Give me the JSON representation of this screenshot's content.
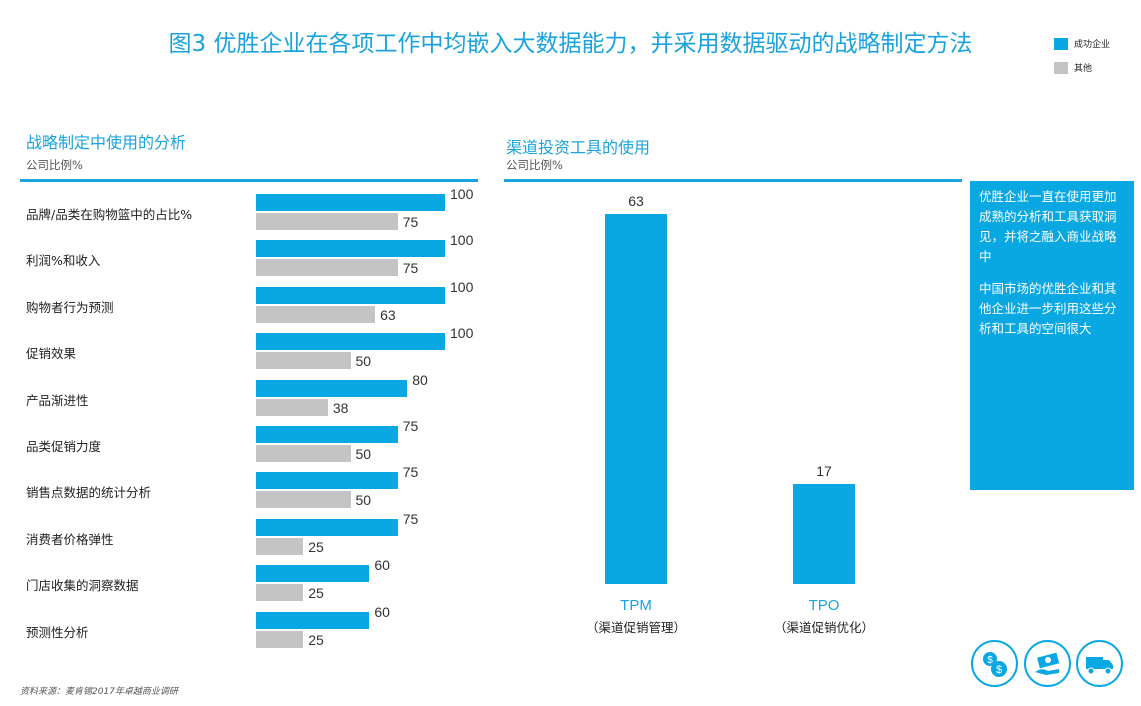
{
  "title": "图3  优胜企业在各项工作中均嵌入大数据能力，并采用数据驱动的战略制定方法",
  "legend": [
    {
      "label": "成功企业",
      "color": "#0aa8e2"
    },
    {
      "label": "其他",
      "color": "#c4c4c4"
    }
  ],
  "left_panel": {
    "title": "战略制定中使用的分析",
    "subtitle": "公司比例%"
  },
  "right_panel": {
    "title": "渠道投资工具的使用",
    "subtitle": "公司比例%"
  },
  "callout": {
    "p1": "优胜企业一直在使用更加成熟的分析和工具获取洞见，并将之融入商业战略中",
    "p2": "中国市场的优胜企业和其他企业进一步利用这些分析和工具的空间很大"
  },
  "source": "资料来源：麦肯锡2017年卓越商业调研",
  "icons": [
    "money-coins-icon",
    "cash-hand-icon",
    "delivery-truck-icon"
  ],
  "chart_data": [
    {
      "type": "bar",
      "orientation": "horizontal",
      "title": "战略制定中使用的分析",
      "ylabel": "公司比例%",
      "categories": [
        "品牌/品类在购物篮中的占比%",
        "利润%和收入",
        "购物者行为预测",
        "促销效果",
        "产品渐进性",
        "品类促销力度",
        "销售点数据的统计分析",
        "消费者价格弹性",
        "门店收集的洞察数据",
        "预测性分析"
      ],
      "series": [
        {
          "name": "成功企业",
          "color": "#0aa8e2",
          "values": [
            100,
            100,
            100,
            100,
            80,
            75,
            75,
            75,
            60,
            60
          ]
        },
        {
          "name": "其他",
          "color": "#c4c4c4",
          "values": [
            75,
            75,
            63,
            50,
            38,
            50,
            50,
            25,
            25,
            25
          ]
        }
      ],
      "xlim": [
        0,
        100
      ],
      "grid": false
    },
    {
      "type": "bar",
      "orientation": "vertical",
      "title": "渠道投资工具的使用",
      "ylabel": "公司比例%",
      "categories": [
        "TPM",
        "TPO"
      ],
      "category_notes": [
        "（渠道促销管理）",
        "（渠道促销优化）"
      ],
      "series": [
        {
          "name": "成功企业",
          "color": "#0aa8e2",
          "values": [
            63,
            17
          ]
        }
      ],
      "ylim": [
        0,
        63
      ],
      "grid": false
    }
  ]
}
